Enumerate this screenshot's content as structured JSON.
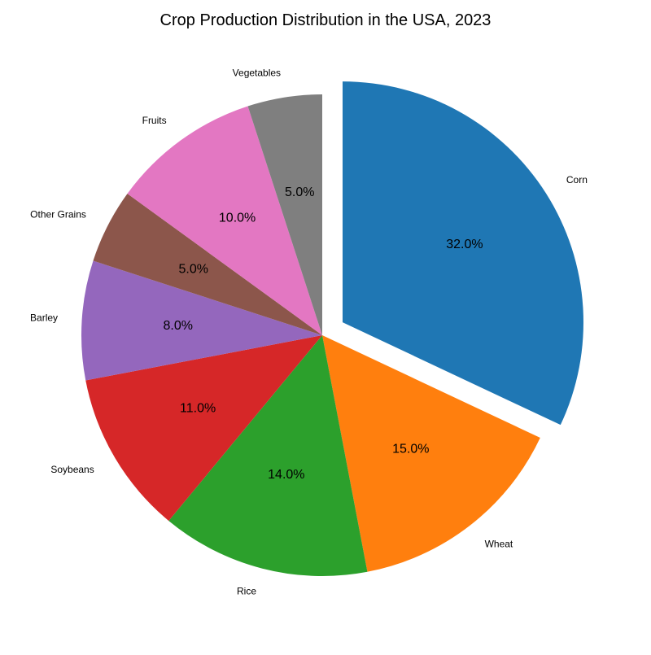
{
  "chart_data": {
    "type": "pie",
    "title": "Crop Production Distribution in the USA, 2023",
    "slices": [
      {
        "label": "Corn",
        "value": 32.0,
        "pct_text": "32.0%",
        "color": "#1f77b4",
        "explode": true
      },
      {
        "label": "Wheat",
        "value": 15.0,
        "pct_text": "15.0%",
        "color": "#ff7f0e",
        "explode": false
      },
      {
        "label": "Rice",
        "value": 14.0,
        "pct_text": "14.0%",
        "color": "#2ca02c",
        "explode": false
      },
      {
        "label": "Soybeans",
        "value": 11.0,
        "pct_text": "11.0%",
        "color": "#d62728",
        "explode": false
      },
      {
        "label": "Barley",
        "value": 8.0,
        "pct_text": "8.0%",
        "color": "#9467bd",
        "explode": false
      },
      {
        "label": "Other Grains",
        "value": 5.0,
        "pct_text": "5.0%",
        "color": "#8c564b",
        "explode": false
      },
      {
        "label": "Fruits",
        "value": 10.0,
        "pct_text": "10.0%",
        "color": "#e377c2",
        "explode": false
      },
      {
        "label": "Vegetables",
        "value": 5.0,
        "pct_text": "5.0%",
        "color": "#7f7f7f",
        "explode": false
      }
    ],
    "start_angle": "top",
    "direction": "clockwise"
  }
}
